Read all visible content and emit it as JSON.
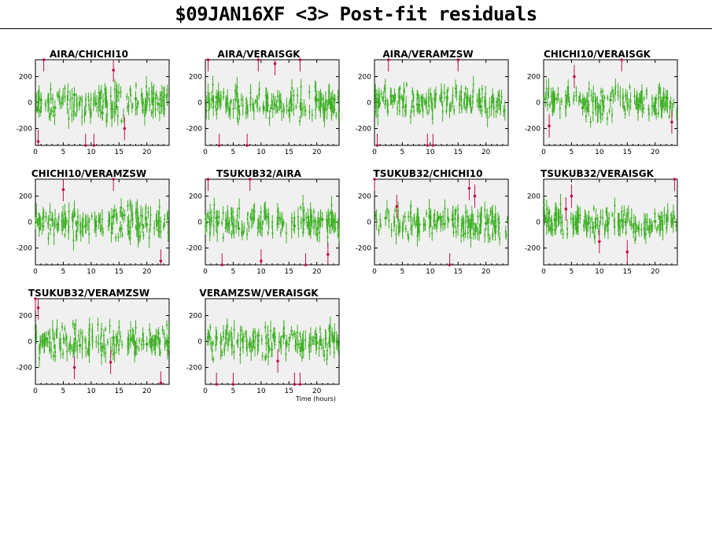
{
  "title": "$09JAN16XF <3> Post-fit residuals",
  "x_axis_label": "Time (hours)",
  "colors": {
    "fit": "#3cb022",
    "flagged": "#c0114a",
    "plot_bg": "#f0f0f0"
  },
  "chart_data": [
    {
      "type": "scatter",
      "title": "AIRA/CHICHI10",
      "xlim": [
        0,
        24
      ],
      "ylim": [
        -330,
        330
      ],
      "xticks": [
        0,
        5,
        10,
        15,
        20
      ],
      "yticks": [
        -200,
        0,
        200
      ],
      "series": [
        {
          "values": [
            [
              1.0,
              20
            ],
            [
              3.5,
              -40
            ],
            [
              7.0,
              60
            ],
            [
              12.0,
              -80
            ],
            [
              18.0,
              30
            ],
            [
              22.0,
              -10
            ]
          ]
        },
        {
          "values": [
            [
              0.5,
              -300
            ],
            [
              1.5,
              330
            ],
            [
              9.0,
              -330
            ],
            [
              10.5,
              -330
            ],
            [
              14.0,
              250
            ],
            [
              16.0,
              -200
            ]
          ]
        }
      ]
    },
    {
      "type": "scatter",
      "title": "AIRA/VERAISGK",
      "xlim": [
        0,
        24
      ],
      "ylim": [
        -330,
        330
      ],
      "xticks": [
        0,
        5,
        10,
        15,
        20
      ],
      "yticks": [
        -200,
        0,
        200
      ],
      "series": [
        {
          "values": [
            [
              2.0,
              40
            ],
            [
              6.0,
              -30
            ],
            [
              11.0,
              50
            ],
            [
              15.0,
              -60
            ],
            [
              20.0,
              20
            ]
          ]
        },
        {
          "values": [
            [
              0.5,
              330
            ],
            [
              2.5,
              -330
            ],
            [
              7.5,
              -330
            ],
            [
              9.5,
              330
            ],
            [
              12.5,
              300
            ],
            [
              17.0,
              330
            ]
          ]
        }
      ]
    },
    {
      "type": "scatter",
      "title": "AIRA/VERAMZSW",
      "xlim": [
        0,
        24
      ],
      "ylim": [
        -330,
        330
      ],
      "xticks": [
        0,
        5,
        10,
        15,
        20
      ],
      "yticks": [
        -200,
        0,
        200
      ],
      "series": [
        {
          "values": [
            [
              3.0,
              50
            ],
            [
              8.0,
              -20
            ],
            [
              13.0,
              40
            ],
            [
              19.0,
              -30
            ]
          ]
        },
        {
          "values": [
            [
              0.5,
              -330
            ],
            [
              2.5,
              330
            ],
            [
              9.5,
              -330
            ],
            [
              10.5,
              -330
            ],
            [
              15.0,
              330
            ]
          ]
        }
      ]
    },
    {
      "type": "scatter",
      "title": "CHICHI10/VERAISGK",
      "xlim": [
        0,
        24
      ],
      "ylim": [
        -330,
        330
      ],
      "xticks": [
        0,
        5,
        10,
        15,
        20
      ],
      "yticks": [
        -200,
        0,
        200
      ],
      "series": [
        {
          "values": [
            [
              2.0,
              30
            ],
            [
              7.0,
              -40
            ],
            [
              12.0,
              20
            ],
            [
              17.0,
              -20
            ],
            [
              22.0,
              40
            ]
          ]
        },
        {
          "values": [
            [
              1.0,
              -180
            ],
            [
              5.5,
              200
            ],
            [
              14.0,
              330
            ],
            [
              23.0,
              -150
            ]
          ]
        }
      ]
    },
    {
      "type": "scatter",
      "title": "CHICHI10/VERAMZSW",
      "xlim": [
        0,
        24
      ],
      "ylim": [
        -330,
        330
      ],
      "xticks": [
        0,
        5,
        10,
        15,
        20
      ],
      "yticks": [
        -200,
        0,
        200
      ],
      "series": [
        {
          "values": [
            [
              3.0,
              20
            ],
            [
              9.0,
              -30
            ],
            [
              14.0,
              40
            ],
            [
              20.0,
              -20
            ]
          ]
        },
        {
          "values": [
            [
              5.0,
              250
            ],
            [
              14.0,
              330
            ],
            [
              22.5,
              -300
            ]
          ]
        }
      ]
    },
    {
      "type": "scatter",
      "title": "TSUKUB32/AIRA",
      "xlim": [
        0,
        24
      ],
      "ylim": [
        -330,
        330
      ],
      "xticks": [
        0,
        5,
        10,
        15,
        20
      ],
      "yticks": [
        -200,
        0,
        200
      ],
      "series": [
        {
          "values": [
            [
              2.0,
              30
            ],
            [
              6.0,
              -50
            ],
            [
              11.0,
              40
            ],
            [
              16.0,
              -30
            ],
            [
              21.0,
              20
            ]
          ]
        },
        {
          "values": [
            [
              0.5,
              330
            ],
            [
              3.0,
              -330
            ],
            [
              8.0,
              330
            ],
            [
              10.0,
              -300
            ],
            [
              18.0,
              -330
            ],
            [
              22.0,
              -250
            ]
          ]
        }
      ]
    },
    {
      "type": "scatter",
      "title": "TSUKUB32/CHICHI10",
      "xlim": [
        0,
        24
      ],
      "ylim": [
        -330,
        330
      ],
      "xticks": [
        0,
        5,
        10,
        15,
        20
      ],
      "yticks": [
        -200,
        0,
        200
      ],
      "series": [
        {
          "values": [
            [
              2.0,
              30
            ],
            [
              8.0,
              -20
            ],
            [
              14.0,
              20
            ],
            [
              20.0,
              -10
            ]
          ]
        },
        {
          "values": [
            [
              0.0,
              330
            ],
            [
              4.0,
              120
            ],
            [
              13.5,
              -330
            ],
            [
              17.0,
              260
            ],
            [
              18.0,
              200
            ]
          ]
        }
      ]
    },
    {
      "type": "scatter",
      "title": "TSUKUB32/VERAISGK",
      "xlim": [
        0,
        24
      ],
      "ylim": [
        -330,
        330
      ],
      "xticks": [
        0,
        5,
        10,
        15,
        20
      ],
      "yticks": [
        -200,
        0,
        200
      ],
      "series": [
        {
          "values": [
            [
              2.0,
              20
            ],
            [
              8.0,
              -10
            ],
            [
              14.0,
              15
            ],
            [
              20.0,
              5
            ]
          ]
        },
        {
          "values": [
            [
              4.0,
              100
            ],
            [
              5.0,
              200
            ],
            [
              10.0,
              -150
            ],
            [
              15.0,
              -230
            ],
            [
              23.5,
              330
            ]
          ]
        }
      ]
    },
    {
      "type": "scatter",
      "title": "TSUKUB32/VERAMZSW",
      "xlim": [
        0,
        24
      ],
      "ylim": [
        -330,
        330
      ],
      "xticks": [
        0,
        5,
        10,
        15,
        20
      ],
      "yticks": [
        -200,
        0,
        200
      ],
      "series": [
        {
          "values": [
            [
              2.0,
              20
            ],
            [
              8.0,
              -30
            ],
            [
              14.0,
              30
            ],
            [
              20.0,
              -20
            ]
          ]
        },
        {
          "values": [
            [
              0.0,
              330
            ],
            [
              0.5,
              260
            ],
            [
              7.0,
              -200
            ],
            [
              13.5,
              -160
            ],
            [
              22.5,
              -320
            ]
          ]
        }
      ]
    },
    {
      "type": "scatter",
      "title": "VERAMZSW/VERAISGK",
      "xlim": [
        0,
        24
      ],
      "ylim": [
        -330,
        330
      ],
      "xticks": [
        0,
        5,
        10,
        15,
        20
      ],
      "yticks": [
        -200,
        0,
        200
      ],
      "series": [
        {
          "values": [
            [
              2.0,
              30
            ],
            [
              8.0,
              -20
            ],
            [
              14.0,
              40
            ],
            [
              20.0,
              -10
            ]
          ]
        },
        {
          "values": [
            [
              2.0,
              -330
            ],
            [
              5.0,
              -330
            ],
            [
              13.0,
              -150
            ],
            [
              16.0,
              -330
            ],
            [
              17.0,
              -330
            ]
          ]
        }
      ]
    }
  ]
}
